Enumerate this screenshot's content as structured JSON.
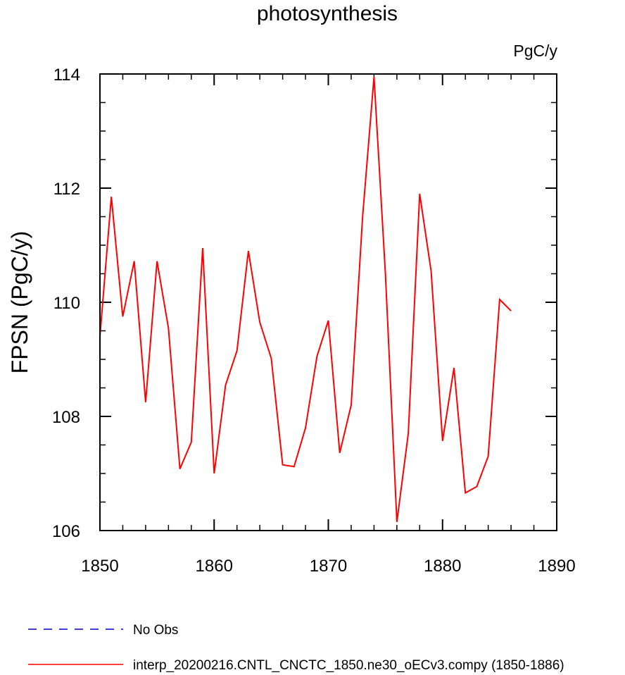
{
  "chart_data": {
    "type": "line",
    "title": "photosynthesis",
    "units": "PgC/y",
    "xlabel": "",
    "ylabel": "FPSN  (PgC/y)",
    "xlim": [
      1850,
      1890
    ],
    "ylim": [
      106,
      114
    ],
    "x_ticks": [
      1850,
      1860,
      1870,
      1880,
      1890
    ],
    "y_ticks": [
      106,
      108,
      110,
      112,
      114
    ],
    "x_minor_step": 2,
    "y_minor_step": 0.5,
    "grid": false,
    "legend_position": "bottom-left",
    "series": [
      {
        "name": "No Obs",
        "color": "#0000cc",
        "style": "dashed",
        "x": [],
        "y": []
      },
      {
        "name": "interp_20200216.CNTL_CNCTC_1850.ne30_oECv3.compy (1850-1886)",
        "color": "#ff0000",
        "style": "solid",
        "x": [
          1850,
          1851,
          1852,
          1853,
          1854,
          1855,
          1856,
          1857,
          1858,
          1859,
          1860,
          1861,
          1862,
          1863,
          1864,
          1865,
          1866,
          1867,
          1868,
          1869,
          1870,
          1871,
          1872,
          1873,
          1874,
          1875,
          1876,
          1877,
          1878,
          1879,
          1880,
          1881,
          1882,
          1883,
          1884,
          1885,
          1886
        ],
        "y": [
          109.4,
          111.85,
          109.75,
          110.72,
          108.25,
          110.72,
          109.55,
          107.08,
          107.55,
          110.95,
          107.0,
          108.55,
          109.15,
          110.9,
          109.65,
          109.02,
          107.15,
          107.12,
          107.8,
          109.05,
          109.68,
          107.36,
          108.2,
          111.5,
          113.95,
          110.5,
          106.15,
          107.7,
          111.9,
          110.55,
          107.57,
          108.85,
          106.66,
          106.77,
          107.3,
          110.05,
          109.85
        ]
      }
    ]
  }
}
